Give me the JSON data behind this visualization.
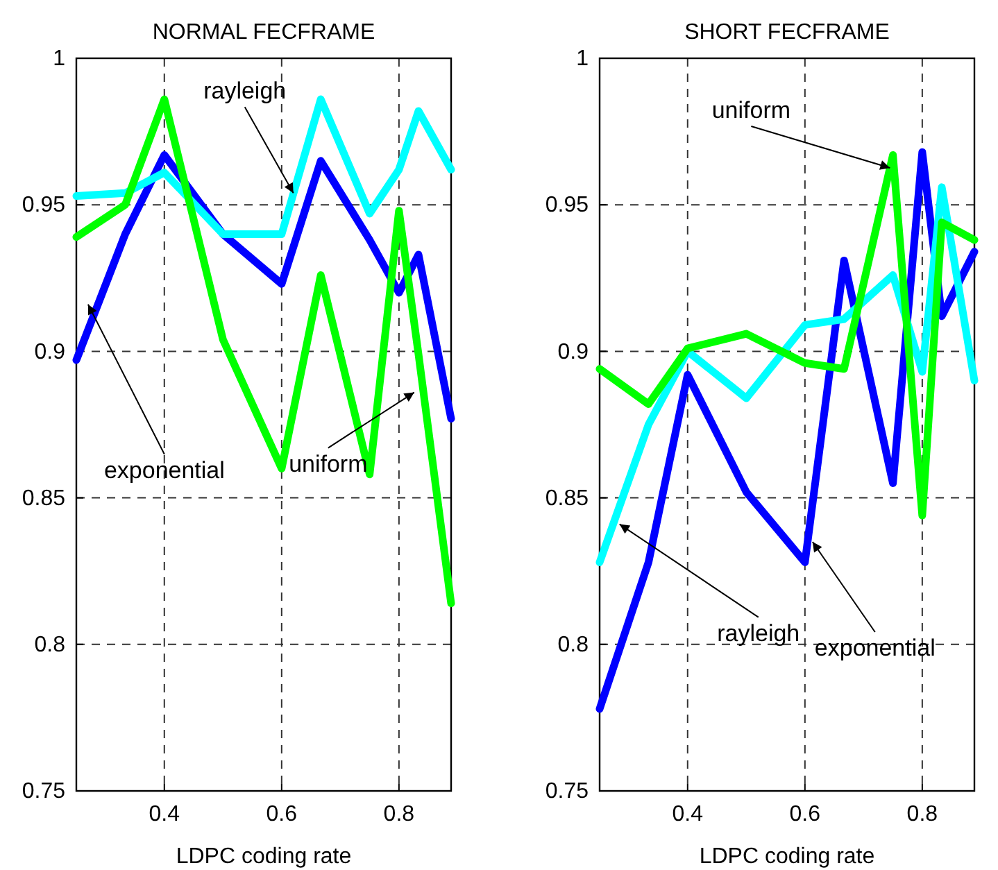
{
  "chart_data": [
    {
      "type": "line",
      "title": "NORMAL FECFRAME",
      "xlabel": "LDPC coding rate",
      "x": [
        0.25,
        0.3333,
        0.4,
        0.5,
        0.6,
        0.6667,
        0.75,
        0.8,
        0.8333,
        0.8889
      ],
      "xlim": [
        0.25,
        0.8889
      ],
      "xticks": [
        0.4,
        0.6,
        0.8
      ],
      "ylim": [
        0.75,
        1
      ],
      "yticks": [
        0.75,
        0.8,
        0.85,
        0.9,
        0.95,
        1
      ],
      "grid": true,
      "series": [
        {
          "color": "#0000ff",
          "values": [
            0.897,
            0.94,
            0.967,
            0.94,
            0.923,
            0.965,
            0.938,
            0.92,
            0.933,
            0.877
          ]
        },
        {
          "color": "#00ffff",
          "values": [
            0.953,
            0.954,
            0.961,
            0.94,
            0.94,
            0.986,
            0.947,
            0.962,
            0.982,
            0.962
          ]
        },
        {
          "color": "#00ff00",
          "values": [
            0.939,
            0.95,
            0.986,
            0.904,
            0.86,
            0.926,
            0.858,
            0.948,
            0.899,
            0.814
          ]
        }
      ],
      "annotations": [
        {
          "text": "rayleigh",
          "x": 0.62,
          "y": 0.954
        },
        {
          "text": "exponential",
          "x": 0.27,
          "y": 0.916
        },
        {
          "text": "uniform",
          "x": 0.826,
          "y": 0.886
        }
      ]
    },
    {
      "type": "line",
      "title": "SHORT FECFRAME",
      "xlabel": "LDPC coding rate",
      "x": [
        0.25,
        0.3333,
        0.4,
        0.5,
        0.6,
        0.6667,
        0.75,
        0.8,
        0.8333,
        0.8889
      ],
      "xlim": [
        0.25,
        0.8889
      ],
      "xticks": [
        0.4,
        0.6,
        0.8
      ],
      "ylim": [
        0.75,
        1
      ],
      "yticks": [
        0.75,
        0.8,
        0.85,
        0.9,
        0.95,
        1
      ],
      "grid": true,
      "series": [
        {
          "color": "#0000ff",
          "values": [
            0.778,
            0.828,
            0.892,
            0.852,
            0.828,
            0.931,
            0.855,
            0.968,
            0.912,
            0.934
          ]
        },
        {
          "color": "#00ffff",
          "values": [
            0.828,
            0.875,
            0.9,
            0.884,
            0.909,
            0.911,
            0.926,
            0.893,
            0.956,
            0.89
          ]
        },
        {
          "color": "#00ff00",
          "values": [
            0.894,
            0.882,
            0.901,
            0.906,
            0.896,
            0.894,
            0.967,
            0.844,
            0.944,
            0.938
          ]
        }
      ],
      "annotations": [
        {
          "text": "uniform",
          "x": 0.745,
          "y": 0.9626
        },
        {
          "text": "rayleigh",
          "x": 0.284,
          "y": 0.841
        },
        {
          "text": "exponential",
          "x": 0.613,
          "y": 0.835
        }
      ]
    }
  ]
}
